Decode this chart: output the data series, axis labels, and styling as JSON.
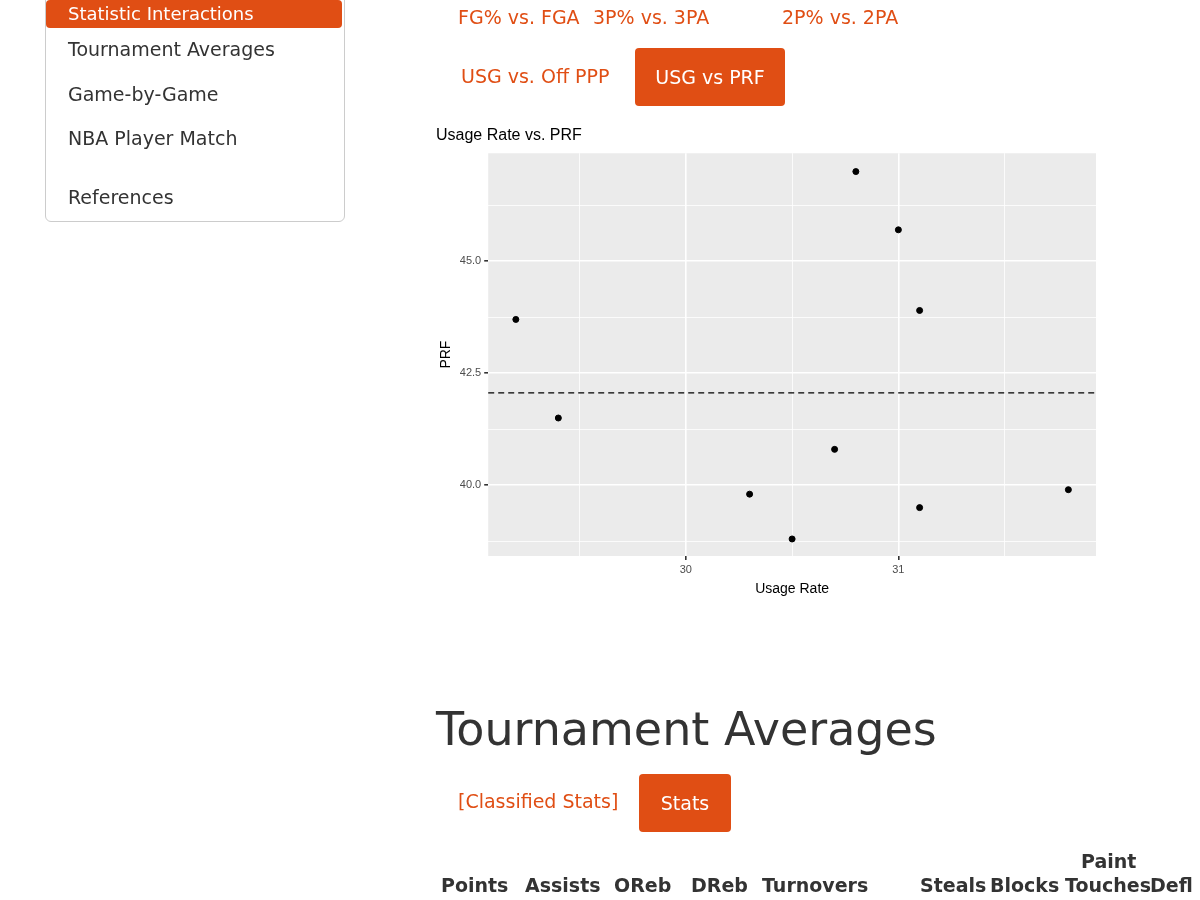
{
  "chart_data": [
    {
      "type": "scatter",
      "title": "Usage Rate vs. PRF",
      "xlabel": "Usage Rate",
      "ylabel": "PRF",
      "x": [
        29.2,
        29.4,
        30.3,
        30.5,
        30.7,
        30.8,
        31.0,
        31.1,
        31.1,
        31.8
      ],
      "values": [
        43.7,
        41.5,
        39.8,
        38.8,
        40.8,
        47.0,
        45.7,
        43.9,
        39.5,
        39.9
      ],
      "color": "#000000",
      "marker": "circle",
      "xlim": [
        29.07,
        31.93
      ],
      "xticks": [
        {
          "value": 29.5,
          "label": null
        },
        30,
        {
          "value": 30.5,
          "label": null
        },
        31,
        {
          "value": 31.5,
          "label": null
        }
      ],
      "ylim": [
        38.42,
        47.41
      ],
      "yticks": [
        {
          "value": 38.75,
          "label": null
        },
        {
          "value": 40,
          "label": "40.0"
        },
        {
          "value": 41.25,
          "label": null
        },
        {
          "value": 42.5,
          "label": "42.5"
        },
        {
          "value": 43.75,
          "label": null
        },
        {
          "value": 45,
          "label": "45.0"
        },
        {
          "value": 46.25,
          "label": null
        }
      ],
      "grid": true,
      "ref_lines": [
        {
          "axis": "y",
          "value": 42.06,
          "label": null,
          "color": "#000000",
          "line_style": "dashed"
        }
      ]
    },
    {
      "type": "other",
      "annotations": [
        "Statistic Interactions",
        "Tournament Averages",
        "Game-by-Game",
        "NBA Player Match",
        "References",
        "FG% vs. FGA",
        "3P% vs. 3PA",
        "2P% vs. 2PA",
        "USG vs. Off PPP",
        "USG vs PRF",
        "Tournament Averages",
        "[Classified Stats]",
        "Stats",
        "Paint",
        "Points",
        "Assists",
        "OReb",
        "DReb",
        "Turnovers",
        "Steals",
        "Blocks",
        "Touches",
        "Defl"
      ]
    }
  ]
}
